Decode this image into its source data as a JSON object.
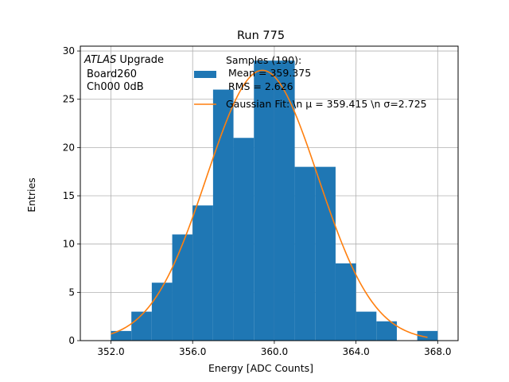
{
  "chart_data": {
    "type": "bar",
    "title": "Run 775",
    "xlabel": "Energy [ADC Counts]",
    "ylabel": "Entries",
    "xlim": [
      350.5,
      369.0
    ],
    "ylim": [
      0,
      30.5
    ],
    "grid": true,
    "x_ticks": [
      352,
      356,
      360,
      364,
      368
    ],
    "x_tick_labels": [
      "352.0",
      "356.0",
      "360.0",
      "364.0",
      "368.0"
    ],
    "y_ticks": [
      0,
      5,
      10,
      15,
      20,
      25,
      30
    ],
    "y_tick_labels": [
      "0",
      "5",
      "10",
      "15",
      "20",
      "25",
      "30"
    ],
    "bin_edges": [
      352,
      353,
      354,
      355,
      356,
      357,
      358,
      359,
      360,
      361,
      362,
      363,
      364,
      365,
      366,
      367,
      368
    ],
    "values": [
      1,
      3,
      6,
      11,
      14,
      26,
      21,
      29,
      29,
      18,
      18,
      8,
      3,
      2,
      0,
      1
    ],
    "series": [
      {
        "name": "Samples (190):\n Mean = 359.375\n RMS = 2.626",
        "type": "histogram",
        "color": "#1f77b4"
      },
      {
        "name": "Gaussian Fit: \\n μ = 359.415 \\n σ=2.725",
        "type": "line",
        "color": "#ff7f0e",
        "mu": 359.415,
        "sigma": 2.725,
        "amplitude": 28.0,
        "x_range": [
          352.0,
          367.5
        ]
      }
    ],
    "annotation": {
      "emphasis": "ATLAS",
      "line1_rest": "Upgrade",
      "line2": "Board260",
      "line3": "Ch000 0dB"
    },
    "legend": {
      "placement": "top-right",
      "entries": [
        {
          "lines": [
            "Samples (190):",
            "Mean = 359.375",
            "RMS = 2.626"
          ]
        },
        {
          "lines": [
            "Gaussian Fit: \\n μ = 359.415 \\n σ=2.725"
          ]
        }
      ]
    }
  }
}
